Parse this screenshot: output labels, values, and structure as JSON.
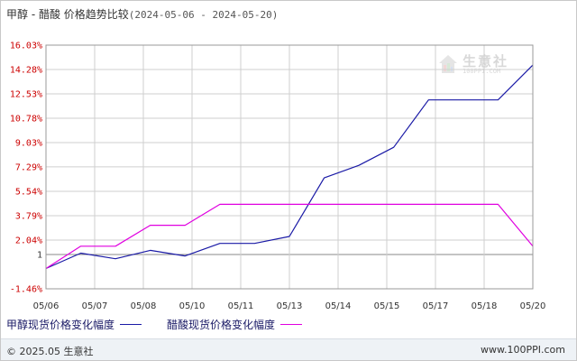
{
  "title": {
    "main": "甲醇 - 醋酸 价格趋势比较",
    "range": "(2024-05-06 - 2024-05-20)"
  },
  "watermark": {
    "name": "生意社",
    "url": "100PPI.COM"
  },
  "colors": {
    "methanol": "#1a1aa6",
    "acetic": "#e000e0",
    "grid": "#cfcfcf",
    "axis": "#999999",
    "tick_red": "#cc0000",
    "tick_black": "#333333"
  },
  "chart_data": {
    "type": "line",
    "title": "甲醇 - 醋酸 价格趋势比较",
    "xlabel": "",
    "ylabel": "",
    "x_tick_labels": [
      "05/06",
      "05/07",
      "05/08",
      "05/10",
      "05/11",
      "05/13",
      "05/14",
      "05/15",
      "05/17",
      "05/18",
      "05/20"
    ],
    "y_ticks": [
      16.03,
      14.28,
      12.53,
      10.78,
      9.03,
      7.29,
      5.54,
      3.79,
      2.04,
      1,
      -1.46
    ],
    "y_tick_labels": [
      "16.03%",
      "14.28%",
      "12.53%",
      "10.78%",
      "9.03%",
      "7.29%",
      "5.54%",
      "3.79%",
      "2.04%",
      "1",
      "-1.46%"
    ],
    "ylim": [
      -1.46,
      16.03
    ],
    "x_index_range": [
      0,
      14
    ],
    "grid": true,
    "legend": "bottom-left",
    "series": [
      {
        "name": "甲醇现货价格变化幅度",
        "color": "#1a1aa6",
        "points": [
          [
            0,
            0
          ],
          [
            1,
            1.1
          ],
          [
            2,
            0.7
          ],
          [
            3,
            1.3
          ],
          [
            4,
            0.9
          ],
          [
            5,
            1.8
          ],
          [
            6,
            1.8
          ],
          [
            7,
            2.3
          ],
          [
            8,
            6.5
          ],
          [
            9,
            7.4
          ],
          [
            10,
            8.7
          ],
          [
            11,
            12.1
          ],
          [
            12,
            12.1
          ],
          [
            13,
            12.1
          ],
          [
            14,
            14.6
          ]
        ]
      },
      {
        "name": "醋酸现货价格变化幅度",
        "color": "#e000e0",
        "points": [
          [
            0,
            0
          ],
          [
            1,
            1.6
          ],
          [
            2,
            1.6
          ],
          [
            3,
            3.1
          ],
          [
            4,
            3.1
          ],
          [
            5,
            4.6
          ],
          [
            6,
            4.6
          ],
          [
            7,
            4.6
          ],
          [
            8,
            4.6
          ],
          [
            9,
            4.6
          ],
          [
            10,
            4.6
          ],
          [
            11,
            4.6
          ],
          [
            12,
            4.6
          ],
          [
            13,
            4.6
          ],
          [
            14,
            1.6
          ]
        ]
      }
    ]
  },
  "footer": {
    "copyright": "© 2025.05 生意社",
    "site": "www.100PPI.com"
  }
}
